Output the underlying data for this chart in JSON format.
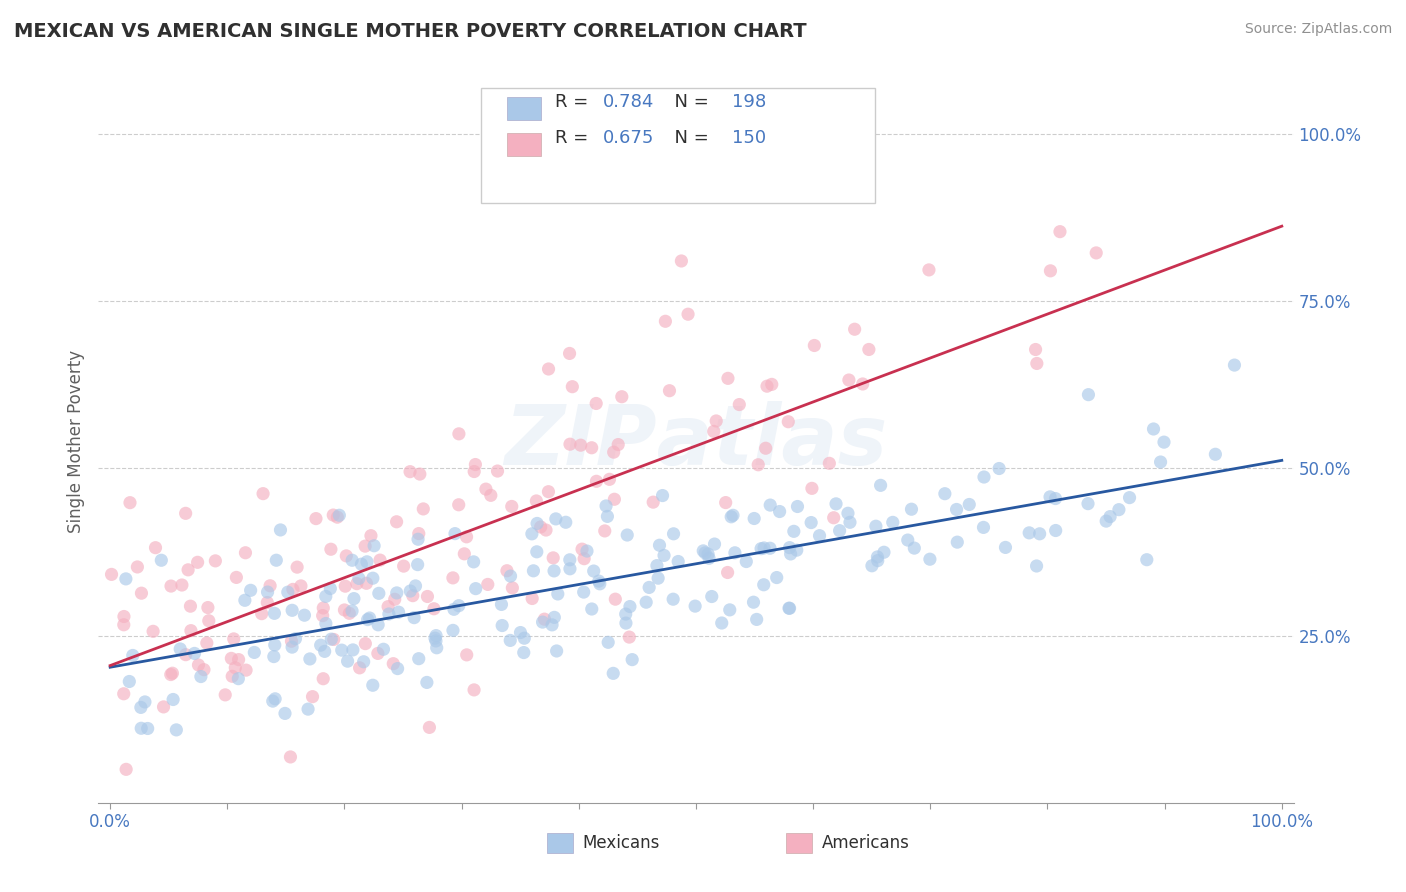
{
  "title": "MEXICAN VS AMERICAN SINGLE MOTHER POVERTY CORRELATION CHART",
  "source": "Source: ZipAtlas.com",
  "ylabel": "Single Mother Poverty",
  "blue_R": 0.784,
  "blue_N": 198,
  "pink_R": 0.675,
  "pink_N": 150,
  "blue_color": "#aac8e8",
  "pink_color": "#f4b0c0",
  "blue_line_color": "#2858a0",
  "pink_line_color": "#c83050",
  "legend_blue_label": "Mexicans",
  "legend_pink_label": "Americans",
  "watermark": "ZIPAtlas",
  "background_color": "#ffffff",
  "grid_color": "#c8c8c8",
  "title_color": "#303030",
  "tick_label_color": "#4878c0",
  "blue_seed": 42,
  "pink_seed": 17,
  "dot_size": 90,
  "dot_alpha": 0.65
}
